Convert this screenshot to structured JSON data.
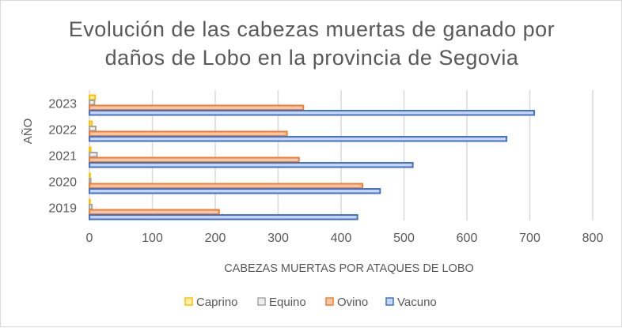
{
  "chart_data": {
    "type": "bar",
    "orientation": "horizontal",
    "title_line1": "Evolución de las cabezas muertas de ganado por",
    "title_line2": "daños de Lobo en la provincia de Segovia",
    "xlabel": "CABEZAS MUERTAS POR ATAQUES DE LOBO",
    "ylabel": "AÑO",
    "xlim": [
      0,
      800
    ],
    "xticks": [
      "0",
      "100",
      "200",
      "300",
      "400",
      "500",
      "600",
      "700",
      "800"
    ],
    "categories": [
      "2019",
      "2020",
      "2021",
      "2022",
      "2023"
    ],
    "series": [
      {
        "name": "Caprino",
        "color": "#FFC000",
        "fill": "#FFF2A8",
        "values": [
          1,
          1,
          2,
          4,
          9
        ]
      },
      {
        "name": "Equino",
        "color": "#A5A5A5",
        "fill": "#EDEDED",
        "values": [
          4,
          2,
          12,
          10,
          8
        ]
      },
      {
        "name": "Ovino",
        "color": "#ED7D31",
        "fill": "#F9C6A8",
        "values": [
          206,
          434,
          333,
          314,
          340
        ]
      },
      {
        "name": "Vacuno",
        "color": "#4472C4",
        "fill": "#C6D5F5",
        "values": [
          426,
          462,
          514,
          663,
          707
        ]
      }
    ],
    "grid": true,
    "legend": "bottom"
  }
}
